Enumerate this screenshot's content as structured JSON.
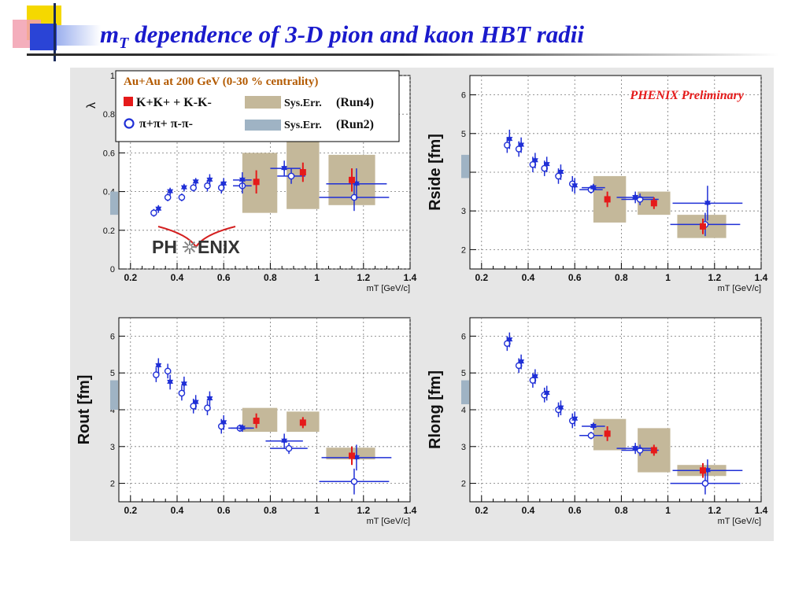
{
  "title": {
    "prefix": "m",
    "sub": "T",
    "rest": " dependence of 3-D pion and kaon HBT radii"
  },
  "colors": {
    "kaon": "#e51a1a",
    "pion": "#1f2fd6",
    "run4": "#c4b89a",
    "run2": "#9fb3c4",
    "title": "#1a1acc"
  },
  "legend": {
    "title": "Au+Au at 200 GeV (0-30 % centrality)",
    "kaon_label": "K+K+ + K-K-",
    "pion_label": "π+π+ π-π-",
    "sys4": "Sys.Err.",
    "run4": "(Run4)",
    "sys2": "Sys.Err.",
    "run2": "(Run2)"
  },
  "logo": {
    "left": "PH",
    "right": "ENIX"
  },
  "preliminary": "PHENIX Preliminary",
  "chart_data": [
    {
      "type": "scatter",
      "id": "lambda",
      "ylabel": "λ",
      "xlabel": "mT [GeV/c]",
      "xlim": [
        0.15,
        1.4
      ],
      "ylim": [
        0,
        1
      ],
      "grid": true,
      "yticks": [
        0,
        0.2,
        0.4,
        0.6,
        0.8,
        1
      ],
      "yticklabels": [
        "0",
        "0.2",
        "0.4",
        "0.6",
        "0.8",
        "1"
      ],
      "xticks": [
        0.2,
        0.4,
        0.6,
        0.8,
        1,
        1.2,
        1.4
      ],
      "xticklabels": [
        "0.2",
        "0.4",
        "0.6",
        "0.8",
        "1",
        "1.2",
        "1.4"
      ],
      "run2_band": [
        0.28,
        0.4
      ],
      "pion_run4": [
        {
          "x": 0.32,
          "y": 0.31,
          "ey": 0.02
        },
        {
          "x": 0.37,
          "y": 0.4,
          "ey": 0.02
        },
        {
          "x": 0.43,
          "y": 0.42,
          "ey": 0.02
        },
        {
          "x": 0.48,
          "y": 0.45,
          "ey": 0.02
        },
        {
          "x": 0.54,
          "y": 0.46,
          "ey": 0.03
        },
        {
          "x": 0.6,
          "y": 0.44,
          "ey": 0.03
        },
        {
          "x": 0.68,
          "y": 0.46,
          "ey": 0.04,
          "exl": 0.04,
          "exr": 0.04
        },
        {
          "x": 0.86,
          "y": 0.52,
          "ey": 0.04,
          "exl": 0.06,
          "exr": 0.07
        },
        {
          "x": 1.17,
          "y": 0.44,
          "ey": 0.08,
          "exl": 0.13,
          "exr": 0.13
        }
      ],
      "pion_run2": [
        {
          "x": 0.3,
          "y": 0.29,
          "ey": 0.02
        },
        {
          "x": 0.36,
          "y": 0.37,
          "ey": 0.02
        },
        {
          "x": 0.42,
          "y": 0.37,
          "ey": 0.02
        },
        {
          "x": 0.47,
          "y": 0.42,
          "ey": 0.02
        },
        {
          "x": 0.53,
          "y": 0.43,
          "ey": 0.03
        },
        {
          "x": 0.59,
          "y": 0.42,
          "ey": 0.03
        },
        {
          "x": 0.68,
          "y": 0.43,
          "ey": 0.04,
          "exl": 0.04,
          "exr": 0.04
        },
        {
          "x": 0.89,
          "y": 0.48,
          "ey": 0.04,
          "exl": 0.06,
          "exr": 0.06
        },
        {
          "x": 1.16,
          "y": 0.37,
          "ey": 0.07,
          "exl": 0.15,
          "exr": 0.15
        }
      ],
      "kaon": [
        {
          "x": 0.74,
          "y": 0.45,
          "ey": 0.06,
          "sys": [
            0.68,
            0.83,
            0.29,
            0.6
          ]
        },
        {
          "x": 0.94,
          "y": 0.5,
          "ey": 0.05,
          "sys": [
            0.87,
            1.01,
            0.31,
            0.68
          ]
        },
        {
          "x": 1.15,
          "y": 0.46,
          "ey": 0.06,
          "sys": [
            1.05,
            1.25,
            0.33,
            0.59
          ]
        }
      ]
    },
    {
      "type": "scatter",
      "id": "rside",
      "ylabel": "Rside [fm]",
      "xlabel": "mT [GeV/c]",
      "xlim": [
        0.15,
        1.4
      ],
      "ylim": [
        1.5,
        6.5
      ],
      "grid": true,
      "yticks": [
        2,
        3,
        4,
        5,
        6
      ],
      "yticklabels": [
        "2",
        "3",
        "4",
        "5",
        "6"
      ],
      "xticks": [
        0.2,
        0.4,
        0.6,
        0.8,
        1,
        1.2,
        1.4
      ],
      "xticklabels": [
        "0.2",
        "0.4",
        "0.6",
        "0.8",
        "1",
        "1.2",
        "1.4"
      ],
      "run2_band": [
        3.85,
        4.45
      ],
      "pion_run4": [
        {
          "x": 0.32,
          "y": 4.85,
          "ey": 0.25
        },
        {
          "x": 0.37,
          "y": 4.7,
          "ey": 0.2
        },
        {
          "x": 0.43,
          "y": 4.3,
          "ey": 0.2
        },
        {
          "x": 0.48,
          "y": 4.2,
          "ey": 0.2
        },
        {
          "x": 0.54,
          "y": 4.0,
          "ey": 0.2
        },
        {
          "x": 0.6,
          "y": 3.65,
          "ey": 0.2
        },
        {
          "x": 0.68,
          "y": 3.6,
          "ey": 0.1,
          "exl": 0.05,
          "exr": 0.05
        },
        {
          "x": 0.86,
          "y": 3.35,
          "ey": 0.15,
          "exl": 0.08,
          "exr": 0.08
        },
        {
          "x": 1.17,
          "y": 3.2,
          "ey": 0.45,
          "exl": 0.15,
          "exr": 0.15
        }
      ],
      "pion_run2": [
        {
          "x": 0.31,
          "y": 4.7,
          "ey": 0.2
        },
        {
          "x": 0.36,
          "y": 4.6,
          "ey": 0.2
        },
        {
          "x": 0.42,
          "y": 4.2,
          "ey": 0.2
        },
        {
          "x": 0.47,
          "y": 4.1,
          "ey": 0.2
        },
        {
          "x": 0.53,
          "y": 3.9,
          "ey": 0.2
        },
        {
          "x": 0.59,
          "y": 3.7,
          "ey": 0.2
        },
        {
          "x": 0.67,
          "y": 3.55,
          "ey": 0.1,
          "exl": 0.05,
          "exr": 0.05
        },
        {
          "x": 0.88,
          "y": 3.3,
          "ey": 0.15,
          "exl": 0.08,
          "exr": 0.08
        },
        {
          "x": 1.16,
          "y": 2.65,
          "ey": 0.3,
          "exl": 0.15,
          "exr": 0.15
        }
      ],
      "kaon": [
        {
          "x": 0.74,
          "y": 3.3,
          "ey": 0.2,
          "sys": [
            0.68,
            0.82,
            2.7,
            3.9
          ]
        },
        {
          "x": 0.94,
          "y": 3.2,
          "ey": 0.15,
          "sys": [
            0.87,
            1.01,
            2.9,
            3.5
          ]
        },
        {
          "x": 1.15,
          "y": 2.6,
          "ey": 0.2,
          "sys": [
            1.04,
            1.25,
            2.3,
            2.9
          ]
        }
      ]
    },
    {
      "type": "scatter",
      "id": "rout",
      "ylabel": "Rout [fm]",
      "xlabel": "mT [GeV/c]",
      "xlim": [
        0.15,
        1.4
      ],
      "ylim": [
        1.5,
        6.5
      ],
      "grid": true,
      "yticks": [
        2,
        3,
        4,
        5,
        6
      ],
      "yticklabels": [
        "2",
        "3",
        "4",
        "5",
        "6"
      ],
      "xticks": [
        0.2,
        0.4,
        0.6,
        0.8,
        1,
        1.2,
        1.4
      ],
      "xticklabels": [
        "0.2",
        "0.4",
        "0.6",
        "0.8",
        "1",
        "1.2",
        "1.4"
      ],
      "run2_band": [
        4.0,
        4.8
      ],
      "pion_run4": [
        {
          "x": 0.32,
          "y": 5.2,
          "ey": 0.2
        },
        {
          "x": 0.37,
          "y": 4.75,
          "ey": 0.2
        },
        {
          "x": 0.43,
          "y": 4.7,
          "ey": 0.2
        },
        {
          "x": 0.48,
          "y": 4.2,
          "ey": 0.2
        },
        {
          "x": 0.54,
          "y": 4.3,
          "ey": 0.2
        },
        {
          "x": 0.6,
          "y": 3.65,
          "ey": 0.2
        },
        {
          "x": 0.68,
          "y": 3.5,
          "ey": 0.1,
          "exl": 0.05,
          "exr": 0.05
        },
        {
          "x": 0.86,
          "y": 3.15,
          "ey": 0.2,
          "exl": 0.08,
          "exr": 0.08
        },
        {
          "x": 1.17,
          "y": 2.7,
          "ey": 0.35,
          "exl": 0.15,
          "exr": 0.15
        }
      ],
      "pion_run2": [
        {
          "x": 0.31,
          "y": 4.95,
          "ey": 0.2
        },
        {
          "x": 0.36,
          "y": 5.05,
          "ey": 0.2
        },
        {
          "x": 0.42,
          "y": 4.45,
          "ey": 0.2
        },
        {
          "x": 0.47,
          "y": 4.1,
          "ey": 0.2
        },
        {
          "x": 0.53,
          "y": 4.05,
          "ey": 0.2
        },
        {
          "x": 0.59,
          "y": 3.55,
          "ey": 0.2
        },
        {
          "x": 0.67,
          "y": 3.5,
          "ey": 0.1,
          "exl": 0.05,
          "exr": 0.05
        },
        {
          "x": 0.88,
          "y": 2.95,
          "ey": 0.15,
          "exl": 0.08,
          "exr": 0.08
        },
        {
          "x": 1.16,
          "y": 2.05,
          "ey": 0.35,
          "exl": 0.15,
          "exr": 0.15
        }
      ],
      "kaon": [
        {
          "x": 0.74,
          "y": 3.7,
          "ey": 0.2,
          "sys": [
            0.68,
            0.83,
            3.4,
            4.05
          ]
        },
        {
          "x": 0.94,
          "y": 3.65,
          "ey": 0.15,
          "sys": [
            0.87,
            1.01,
            3.4,
            3.95
          ]
        },
        {
          "x": 1.15,
          "y": 2.75,
          "ey": 0.25,
          "sys": [
            1.04,
            1.25,
            2.65,
            2.97
          ]
        }
      ]
    },
    {
      "type": "scatter",
      "id": "rlong",
      "ylabel": "Rlong [fm]",
      "xlabel": "mT [GeV/c]",
      "xlim": [
        0.15,
        1.4
      ],
      "ylim": [
        1.5,
        6.5
      ],
      "grid": true,
      "yticks": [
        2,
        3,
        4,
        5,
        6
      ],
      "yticklabels": [
        "2",
        "3",
        "4",
        "5",
        "6"
      ],
      "xticks": [
        0.2,
        0.4,
        0.6,
        0.8,
        1,
        1.2,
        1.4
      ],
      "xticklabels": [
        "0.2",
        "0.4",
        "0.6",
        "0.8",
        "1",
        "1.2",
        "1.4"
      ],
      "run2_band": [
        4.15,
        4.8
      ],
      "pion_run4": [
        {
          "x": 0.32,
          "y": 5.9,
          "ey": 0.2
        },
        {
          "x": 0.37,
          "y": 5.3,
          "ey": 0.2
        },
        {
          "x": 0.43,
          "y": 4.9,
          "ey": 0.2
        },
        {
          "x": 0.48,
          "y": 4.45,
          "ey": 0.2
        },
        {
          "x": 0.54,
          "y": 4.05,
          "ey": 0.2
        },
        {
          "x": 0.6,
          "y": 3.75,
          "ey": 0.2
        },
        {
          "x": 0.68,
          "y": 3.55,
          "ey": 0.1,
          "exl": 0.05,
          "exr": 0.05
        },
        {
          "x": 0.86,
          "y": 2.95,
          "ey": 0.15,
          "exl": 0.08,
          "exr": 0.08
        },
        {
          "x": 1.17,
          "y": 2.35,
          "ey": 0.3,
          "exl": 0.15,
          "exr": 0.15
        }
      ],
      "pion_run2": [
        {
          "x": 0.31,
          "y": 5.8,
          "ey": 0.2
        },
        {
          "x": 0.36,
          "y": 5.2,
          "ey": 0.2
        },
        {
          "x": 0.42,
          "y": 4.8,
          "ey": 0.2
        },
        {
          "x": 0.47,
          "y": 4.4,
          "ey": 0.2
        },
        {
          "x": 0.53,
          "y": 4.0,
          "ey": 0.2
        },
        {
          "x": 0.59,
          "y": 3.7,
          "ey": 0.2
        },
        {
          "x": 0.67,
          "y": 3.3,
          "ey": 0.1,
          "exl": 0.05,
          "exr": 0.05
        },
        {
          "x": 0.88,
          "y": 2.9,
          "ey": 0.15,
          "exl": 0.08,
          "exr": 0.08
        },
        {
          "x": 1.16,
          "y": 2.0,
          "ey": 0.3,
          "exl": 0.15,
          "exr": 0.15
        }
      ],
      "kaon": [
        {
          "x": 0.74,
          "y": 3.35,
          "ey": 0.2,
          "sys": [
            0.68,
            0.82,
            2.9,
            3.75
          ]
        },
        {
          "x": 0.94,
          "y": 2.9,
          "ey": 0.15,
          "sys": [
            0.87,
            1.01,
            2.3,
            3.5
          ]
        },
        {
          "x": 1.15,
          "y": 2.35,
          "ey": 0.2,
          "sys": [
            1.04,
            1.25,
            2.2,
            2.5
          ]
        }
      ]
    }
  ]
}
